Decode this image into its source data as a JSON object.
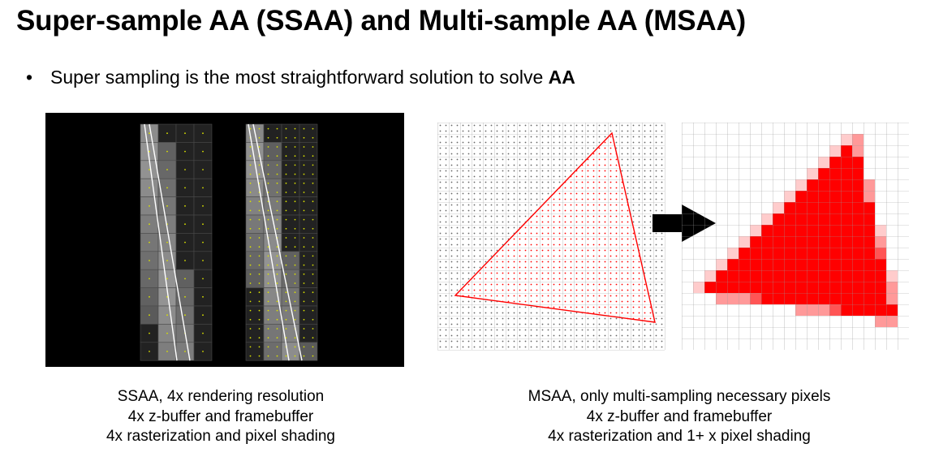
{
  "slide": {
    "title": "Super-sample AA (SSAA) and Multi-sample AA (MSAA)",
    "bullet": {
      "text": "Super sampling is the most straightforward solution to solve ",
      "bold": "AA"
    }
  },
  "figures": {
    "ssaa_caption": [
      "SSAA, 4x rendering resolution",
      "4x z-buffer and framebuffer",
      "4x rasterization and pixel shading"
    ],
    "msaa_caption": [
      "MSAA, only multi-sampling necessary pixels",
      "4x z-buffer and framebuffer",
      "4x rasterization and 1+ x pixel shading"
    ]
  },
  "colors": {
    "triangle": "#ff0000",
    "ssaa_background": "#000000",
    "sample_dot": "#d8e000",
    "grid_line": "#9a9a9a"
  }
}
